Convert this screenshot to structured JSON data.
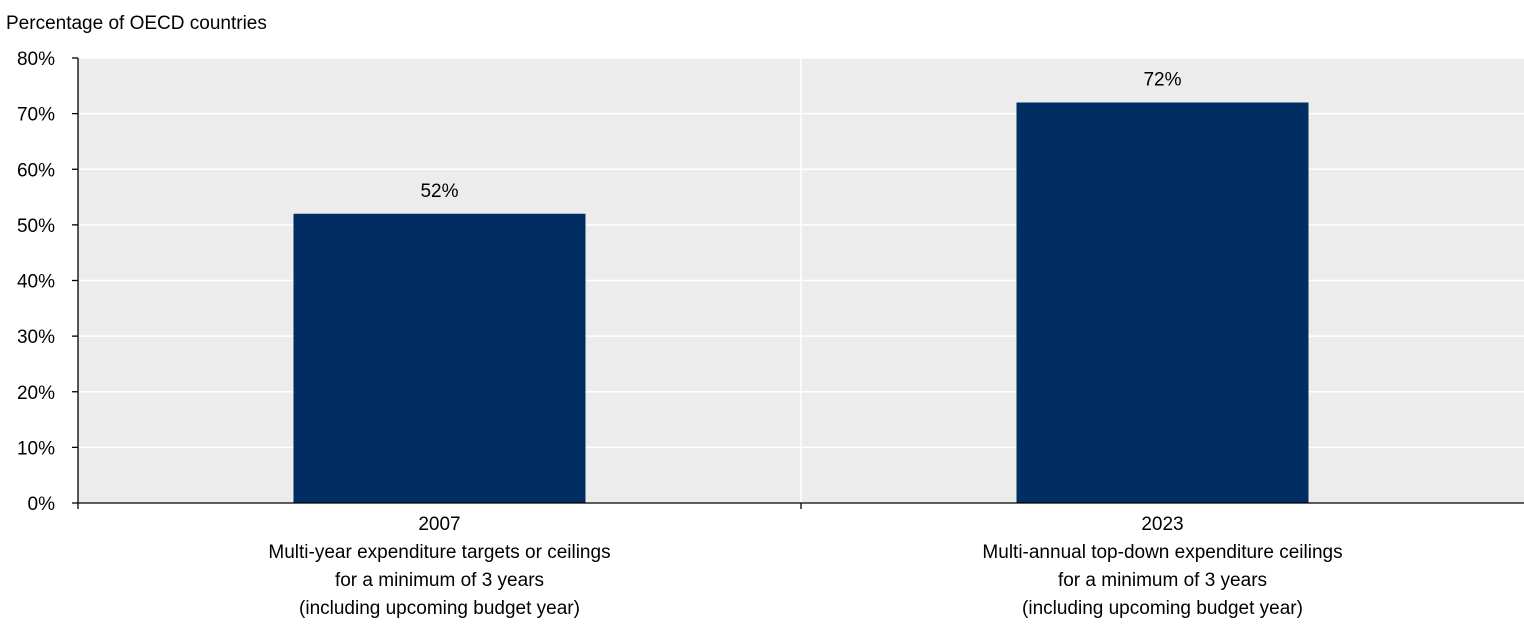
{
  "chart_data": {
    "type": "bar",
    "ylabel": "Percentage of OECD countries",
    "xlabel": "",
    "ylim": [
      0,
      80
    ],
    "yticks": [
      0,
      10,
      20,
      30,
      40,
      50,
      60,
      70,
      80
    ],
    "ytick_labels": [
      "0%",
      "10%",
      "20%",
      "30%",
      "40%",
      "50%",
      "60%",
      "70%",
      "80%"
    ],
    "categories": [
      {
        "year": "2007",
        "lines": [
          "Multi-year expenditure targets or ceilings",
          "for a minimum of 3 years",
          "(including upcoming budget year)"
        ]
      },
      {
        "year": "2023",
        "lines": [
          "Multi-annual top-down expenditure ceilings",
          "for a minimum of 3 years",
          "(including upcoming budget year)"
        ]
      }
    ],
    "values": [
      52,
      72
    ],
    "data_labels": [
      "52%",
      "72%"
    ],
    "grid": "horizontal",
    "colors": {
      "bar": "#002d62",
      "plot_background": "#ececec",
      "gridline": "#ffffff",
      "axis": "#000000"
    }
  }
}
